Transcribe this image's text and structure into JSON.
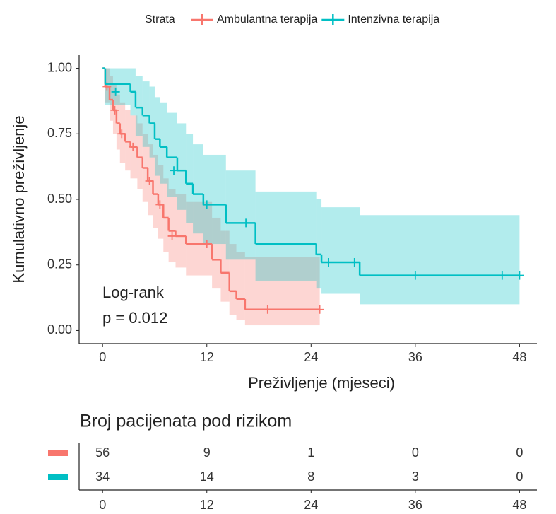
{
  "chart_data": {
    "type": "survival",
    "legend_title": "Strata",
    "x_label": "Preživljenje (mjeseci)",
    "y_label": "Kumulativno preživljenje",
    "annotation": [
      "Log-rank",
      "p = 0.012"
    ],
    "xlim": [
      -2.7,
      50
    ],
    "ylim": [
      -0.05,
      1.05
    ],
    "xticks": [
      0,
      12,
      24,
      36,
      48
    ],
    "yticks": [
      {
        "value": 0,
        "label": "0.00"
      },
      {
        "value": 0.25,
        "label": "0.25"
      },
      {
        "value": 0.5,
        "label": "0.50"
      },
      {
        "value": 0.75,
        "label": "0.75"
      },
      {
        "value": 1,
        "label": "1.00"
      }
    ],
    "series": [
      {
        "name": "Ambulantna terapija",
        "color": "#f8766d",
        "x": [
          0,
          0.3,
          0.8,
          1.2,
          1.6,
          2.0,
          2.6,
          3.2,
          4.0,
          4.6,
          5.2,
          5.8,
          6.4,
          7.0,
          7.6,
          8.4,
          9.6,
          12.6,
          13.6,
          14.6,
          15.4,
          16.4,
          25
        ],
        "values": [
          1.0,
          0.93,
          0.88,
          0.84,
          0.79,
          0.75,
          0.72,
          0.7,
          0.66,
          0.62,
          0.57,
          0.52,
          0.48,
          0.43,
          0.38,
          0.36,
          0.33,
          0.27,
          0.22,
          0.15,
          0.12,
          0.08,
          0.08
        ],
        "lower": [
          1.0,
          0.87,
          0.8,
          0.75,
          0.69,
          0.64,
          0.61,
          0.58,
          0.54,
          0.49,
          0.44,
          0.39,
          0.35,
          0.3,
          0.26,
          0.24,
          0.21,
          0.16,
          0.11,
          0.06,
          0.04,
          0.02,
          0.02
        ],
        "upper": [
          1.0,
          1.0,
          0.97,
          0.94,
          0.9,
          0.87,
          0.84,
          0.82,
          0.79,
          0.75,
          0.71,
          0.67,
          0.63,
          0.58,
          0.54,
          0.52,
          0.49,
          0.43,
          0.38,
          0.33,
          0.3,
          0.28,
          0.28
        ],
        "censor_x": [
          0.5,
          1.4,
          2.2,
          3.5,
          5.4,
          6.6,
          8.0,
          12.0,
          19.0,
          25.0
        ],
        "censor_y": [
          0.93,
          0.84,
          0.75,
          0.7,
          0.57,
          0.48,
          0.36,
          0.33,
          0.08,
          0.08
        ]
      },
      {
        "name": "Intenzivna terapija",
        "color": "#00bfc4",
        "x": [
          0,
          0.3,
          3.2,
          3.8,
          4.6,
          5.4,
          6.0,
          6.6,
          7.4,
          8.6,
          9.6,
          10.4,
          11.6,
          14.2,
          17.6,
          24.6,
          25.2,
          29.6,
          48
        ],
        "values": [
          1.0,
          0.94,
          0.91,
          0.85,
          0.82,
          0.79,
          0.73,
          0.7,
          0.66,
          0.61,
          0.56,
          0.52,
          0.48,
          0.41,
          0.33,
          0.29,
          0.26,
          0.21,
          0.21
        ],
        "lower": [
          1.0,
          0.86,
          0.82,
          0.74,
          0.7,
          0.66,
          0.59,
          0.56,
          0.51,
          0.46,
          0.41,
          0.37,
          0.33,
          0.27,
          0.19,
          0.16,
          0.14,
          0.1,
          0.1
        ],
        "upper": [
          1.0,
          1.0,
          1.0,
          0.97,
          0.95,
          0.93,
          0.89,
          0.87,
          0.83,
          0.79,
          0.75,
          0.71,
          0.67,
          0.61,
          0.53,
          0.5,
          0.47,
          0.44,
          0.44
        ],
        "censor_x": [
          1.5,
          8.2,
          12.0,
          16.5,
          26.0,
          29.0,
          36.0,
          46.0,
          48.0
        ],
        "censor_y": [
          0.91,
          0.61,
          0.48,
          0.41,
          0.26,
          0.26,
          0.21,
          0.21,
          0.21
        ]
      }
    ],
    "risk_table": {
      "title": "Broj pacijenata pod rizikom",
      "times": [
        0,
        12,
        24,
        36,
        48
      ],
      "rows": [
        [
          56,
          9,
          1,
          0,
          0
        ],
        [
          34,
          14,
          8,
          3,
          0
        ]
      ]
    }
  }
}
